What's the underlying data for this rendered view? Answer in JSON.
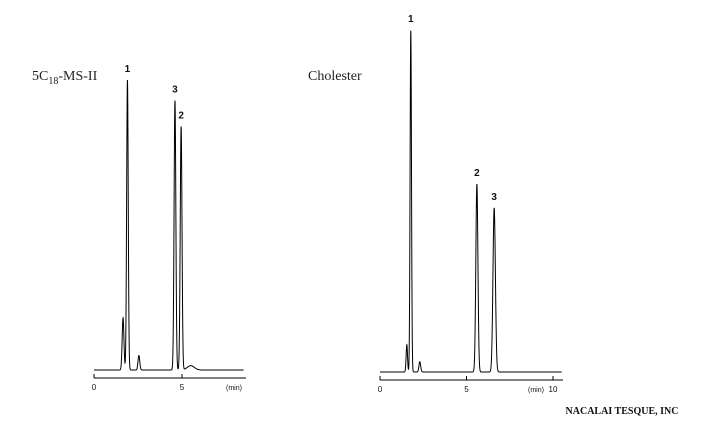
{
  "credit": "NACALAI TESQUE, INC",
  "chart_data": [
    {
      "type": "line",
      "column_label": {
        "prefix": "5C",
        "subscript": "18",
        "suffix": "-MS-II"
      },
      "xlabel": "",
      "ylabel": "",
      "x_unit_label": "(min)",
      "xlim": [
        0,
        8.5
      ],
      "ylim": [
        0,
        1
      ],
      "x_ticks": [
        {
          "value": 0,
          "label": "0"
        },
        {
          "value": 5,
          "label": "5"
        }
      ],
      "grid": false,
      "baseline": 0.02,
      "peaks": [
        {
          "label": "",
          "t": 1.65,
          "h": 0.18,
          "w": 0.05
        },
        {
          "label": "1",
          "t": 1.9,
          "h": 1.0,
          "w": 0.045
        },
        {
          "label": "",
          "t": 2.55,
          "h": 0.05,
          "w": 0.05
        },
        {
          "label": "3",
          "t": 4.6,
          "h": 0.93,
          "w": 0.05
        },
        {
          "label": "2",
          "t": 4.95,
          "h": 0.84,
          "w": 0.05
        },
        {
          "label": "",
          "t": 5.5,
          "h": 0.015,
          "w": 0.2
        }
      ]
    },
    {
      "type": "line",
      "column_label": {
        "prefix": "Cholester",
        "subscript": "",
        "suffix": ""
      },
      "xlabel": "",
      "ylabel": "",
      "x_unit_label": "(min)",
      "xlim": [
        0,
        10.5
      ],
      "ylim": [
        0,
        1
      ],
      "x_ticks": [
        {
          "value": 0,
          "label": "0"
        },
        {
          "value": 5,
          "label": "5"
        },
        {
          "value": 10,
          "label": "10"
        }
      ],
      "grid": false,
      "baseline": 0.02,
      "peaks": [
        {
          "label": "",
          "t": 1.55,
          "h": 0.08,
          "w": 0.04
        },
        {
          "label": "1",
          "t": 1.78,
          "h": 1.0,
          "w": 0.04
        },
        {
          "label": "",
          "t": 2.3,
          "h": 0.03,
          "w": 0.05
        },
        {
          "label": "2",
          "t": 5.6,
          "h": 0.55,
          "w": 0.06
        },
        {
          "label": "3",
          "t": 6.6,
          "h": 0.48,
          "w": 0.07
        }
      ]
    }
  ]
}
